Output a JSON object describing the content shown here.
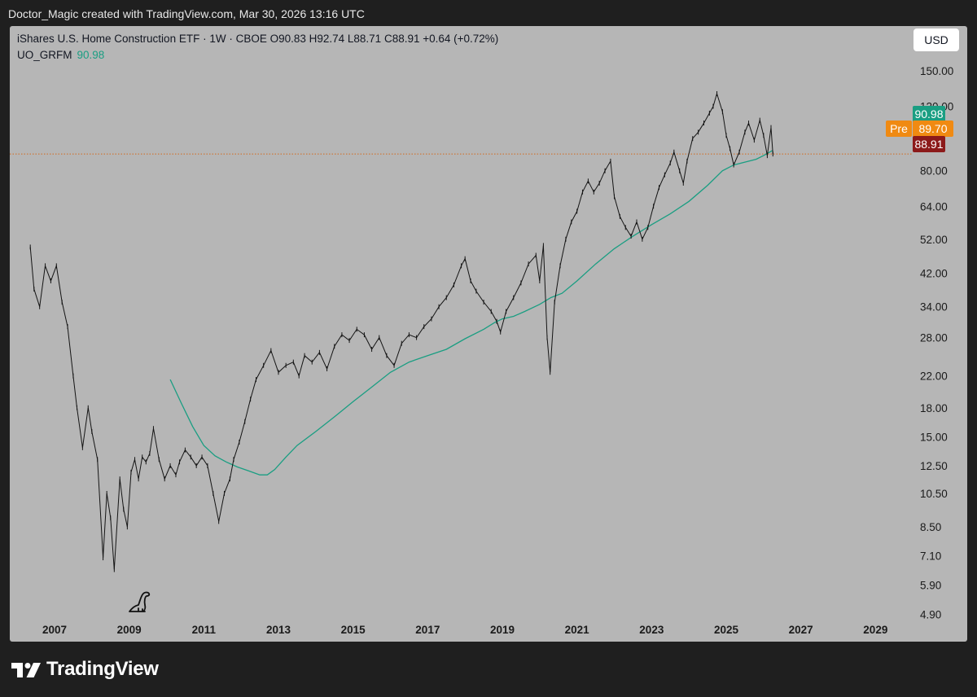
{
  "header": {
    "attribution": "Doctor_Magic created with TradingView.com, Mar 30, 2026 13:16 UTC"
  },
  "legend": {
    "symbol_line": "iShares U.S. Home Construction ETF · 1W · CBOE  O90.83  H92.74  L88.71  C88.91  +0.64 (+0.72%)",
    "indicator_name": "UO_GRFM",
    "indicator_value": "90.98"
  },
  "currency_button": "USD",
  "price_tags": {
    "indicator": "90.98",
    "pre_label": "Pre",
    "pre_value": "89.70",
    "last": "88.91"
  },
  "footer": {
    "brand": "TradingView"
  },
  "colors": {
    "background": "#b6b6b6",
    "frame": "#1f1f1f",
    "price_line": "#141414",
    "indicator": "#1a9e82",
    "pre_market": "#f08a12",
    "last_price": "#8c1a1a",
    "last_price_line": "#d2691e"
  },
  "chart_data": {
    "type": "line",
    "y_scale": "log",
    "x_ticks": [
      "2007",
      "2009",
      "2011",
      "2013",
      "2015",
      "2017",
      "2019",
      "2021",
      "2023",
      "2025",
      "2027",
      "2029"
    ],
    "y_ticks": [
      150.0,
      120.0,
      80.0,
      64.0,
      52.0,
      42.0,
      34.0,
      28.0,
      22.0,
      18.0,
      15.0,
      12.5,
      10.5,
      8.5,
      7.1,
      5.9,
      4.9
    ],
    "y_tick_labels": [
      "150.00",
      "120.00",
      "80.00",
      "64.00",
      "52.00",
      "42.00",
      "34.00",
      "28.00",
      "22.00",
      "18.00",
      "15.00",
      "12.50",
      "10.50",
      "8.50",
      "7.10",
      "5.90",
      "4.90"
    ],
    "xlim": [
      2005.8,
      2029.8
    ],
    "ylim": [
      4.6,
      175
    ],
    "last_price": 88.91,
    "series": [
      {
        "name": "iShares U.S. Home Construction ETF",
        "x": [
          2006.35,
          2006.45,
          2006.6,
          2006.75,
          2006.9,
          2007.05,
          2007.2,
          2007.35,
          2007.5,
          2007.6,
          2007.75,
          2007.9,
          2008.0,
          2008.15,
          2008.3,
          2008.4,
          2008.5,
          2008.6,
          2008.75,
          2008.85,
          2008.95,
          2009.05,
          2009.15,
          2009.25,
          2009.35,
          2009.45,
          2009.55,
          2009.65,
          2009.8,
          2009.95,
          2010.1,
          2010.25,
          2010.35,
          2010.5,
          2010.65,
          2010.8,
          2010.95,
          2011.1,
          2011.25,
          2011.4,
          2011.55,
          2011.7,
          2011.8,
          2011.95,
          2012.1,
          2012.25,
          2012.4,
          2012.6,
          2012.8,
          2013.0,
          2013.2,
          2013.4,
          2013.55,
          2013.7,
          2013.9,
          2014.1,
          2014.3,
          2014.5,
          2014.7,
          2014.9,
          2015.1,
          2015.3,
          2015.5,
          2015.7,
          2015.9,
          2016.1,
          2016.3,
          2016.5,
          2016.7,
          2016.9,
          2017.1,
          2017.3,
          2017.5,
          2017.7,
          2017.9,
          2018.0,
          2018.15,
          2018.3,
          2018.5,
          2018.7,
          2018.85,
          2018.95,
          2019.1,
          2019.3,
          2019.5,
          2019.7,
          2019.9,
          2020.0,
          2020.1,
          2020.2,
          2020.28,
          2020.4,
          2020.55,
          2020.7,
          2020.85,
          2021.0,
          2021.15,
          2021.3,
          2021.45,
          2021.6,
          2021.75,
          2021.9,
          2022.0,
          2022.15,
          2022.3,
          2022.45,
          2022.6,
          2022.75,
          2022.9,
          2023.05,
          2023.2,
          2023.35,
          2023.5,
          2023.6,
          2023.75,
          2023.85,
          2023.95,
          2024.1,
          2024.25,
          2024.4,
          2024.55,
          2024.65,
          2024.75,
          2024.9,
          2025.0,
          2025.1,
          2025.2,
          2025.35,
          2025.5,
          2025.6,
          2025.75,
          2025.9,
          2026.0,
          2026.1,
          2026.2,
          2026.25
        ],
        "values": [
          49.5,
          38,
          34,
          44,
          40,
          44,
          35,
          30,
          22,
          18,
          14,
          18,
          15.5,
          13,
          7.0,
          10.5,
          9.0,
          6.5,
          11.5,
          9.5,
          8.5,
          12.0,
          13.0,
          11.5,
          13.2,
          12.8,
          13.5,
          15.8,
          13.0,
          11.5,
          12.5,
          11.8,
          12.8,
          13.8,
          13.2,
          12.5,
          13.2,
          12.5,
          10.5,
          8.8,
          10.5,
          11.5,
          13.0,
          14.5,
          16.5,
          19.0,
          21.5,
          23.5,
          25.8,
          22.5,
          23.5,
          24.0,
          22.0,
          25.0,
          24.0,
          25.5,
          23.0,
          26.5,
          28.5,
          27.5,
          29.5,
          28.5,
          26.0,
          28.0,
          25.0,
          23.5,
          27.0,
          28.5,
          28.0,
          30.0,
          31.5,
          34.0,
          36.0,
          39.0,
          44.0,
          46.0,
          40.0,
          37.5,
          35.0,
          33.0,
          31.0,
          29.0,
          33.0,
          36.0,
          39.5,
          44.5,
          47.0,
          40.0,
          50.0,
          28.0,
          22.5,
          35.0,
          44.0,
          52.0,
          58.0,
          62.0,
          70.0,
          75.0,
          70.0,
          74.0,
          80.0,
          85.0,
          68.0,
          60.0,
          56.0,
          53.0,
          58.0,
          52.0,
          56.0,
          64.0,
          72.0,
          78.0,
          84.0,
          90.0,
          80.0,
          74.0,
          85.0,
          98.0,
          102.0,
          108.0,
          115.0,
          120.0,
          130.0,
          116.0,
          100.0,
          92.0,
          83.0,
          90.0,
          102.0,
          108.0,
          97.0,
          110.0,
          100.0,
          88.0,
          105.0,
          88.91
        ]
      },
      {
        "name": "UO_GRFM",
        "x": [
          2010.1,
          2010.4,
          2010.7,
          2011.0,
          2011.3,
          2011.6,
          2011.9,
          2012.2,
          2012.5,
          2012.7,
          2012.9,
          2013.2,
          2013.5,
          2014.0,
          2014.5,
          2015.0,
          2015.5,
          2016.0,
          2016.5,
          2017.0,
          2017.5,
          2018.0,
          2018.5,
          2018.8,
          2019.0,
          2019.3,
          2019.6,
          2020.0,
          2020.3,
          2020.6,
          2021.0,
          2021.5,
          2022.0,
          2022.5,
          2023.0,
          2023.5,
          2024.0,
          2024.5,
          2024.9,
          2025.2,
          2025.5,
          2025.8,
          2026.0,
          2026.25
        ],
        "values": [
          21.5,
          18.5,
          16.0,
          14.2,
          13.3,
          12.8,
          12.4,
          12.1,
          11.8,
          11.8,
          12.2,
          13.2,
          14.2,
          15.5,
          17.0,
          18.7,
          20.5,
          22.5,
          24.0,
          25.0,
          26.0,
          27.8,
          29.5,
          30.8,
          31.5,
          32.0,
          33.0,
          34.5,
          36.0,
          37.0,
          40.0,
          44.5,
          49.0,
          53.0,
          57.0,
          61.0,
          66.0,
          73.0,
          80.0,
          83.0,
          84.5,
          86.0,
          88.0,
          90.98
        ]
      }
    ]
  }
}
